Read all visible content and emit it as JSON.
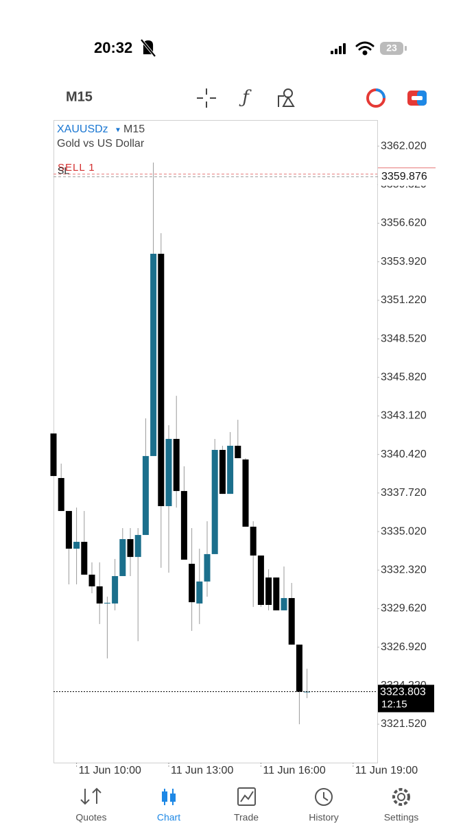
{
  "status_bar": {
    "time": "20:32",
    "battery": "23"
  },
  "toolbar": {
    "timeframe": "M15"
  },
  "chart_data": {
    "type": "candlestick",
    "symbol": "XAUUSDz",
    "timeframe": "M15",
    "description": "Gold vs US Dollar",
    "order_label": "SELL 1",
    "order_price": 3359.876,
    "sl_label": "SL",
    "sl_price": 3360.06,
    "current_price": 3323.803,
    "countdown": "12:15",
    "up_color": "#1b6f8c",
    "down_color": "#000000",
    "ylim": [
      3318.83,
      3363.85
    ],
    "yticks": [
      {
        "value": 3362.02,
        "label": "3362.020"
      },
      {
        "value": 3359.32,
        "label": "3359.320"
      },
      {
        "value": 3356.62,
        "label": "3356.620"
      },
      {
        "value": 3353.92,
        "label": "3353.920"
      },
      {
        "value": 3351.22,
        "label": "3351.220"
      },
      {
        "value": 3348.52,
        "label": "3348.520"
      },
      {
        "value": 3345.82,
        "label": "3345.820"
      },
      {
        "value": 3343.12,
        "label": "3343.120"
      },
      {
        "value": 3340.42,
        "label": "3340.420"
      },
      {
        "value": 3337.72,
        "label": "3337.720"
      },
      {
        "value": 3335.02,
        "label": "3335.020"
      },
      {
        "value": 3332.32,
        "label": "3332.320"
      },
      {
        "value": 3329.62,
        "label": "3329.620"
      },
      {
        "value": 3326.92,
        "label": "3326.920"
      },
      {
        "value": 3324.22,
        "label": "3324.220"
      },
      {
        "value": 3321.52,
        "label": "3321.520"
      }
    ],
    "categories": [
      null,
      null,
      null,
      "11 Jun 10:00",
      null,
      null,
      null,
      null,
      null,
      null,
      null,
      null,
      null,
      null,
      null,
      "11 Jun 13:00",
      null,
      null,
      null,
      null,
      null,
      null,
      null,
      null,
      null,
      null,
      null,
      "11 Jun 16:00",
      null,
      null,
      null,
      null,
      null,
      null,
      null,
      null,
      null,
      null,
      null,
      "11 Jun 19:00"
    ],
    "open": [
      3341.89,
      3338.77,
      3336.46,
      3333.82,
      3334.3,
      3332.0,
      3331.18,
      3329.98,
      3329.98,
      3331.9,
      3334.49,
      3333.24,
      3334.78,
      3340.31,
      3354.48,
      3336.8,
      3341.51,
      3337.86,
      3332.76,
      3329.98,
      3331.52,
      3333.44,
      3340.74,
      3337.66,
      3341.03,
      3340.07,
      3335.36,
      3333.34,
      3331.8,
      3331.8,
      3329.5,
      3330.36,
      3327.1,
      3323.8,
      null,
      null,
      null,
      null,
      null,
      null
    ],
    "high": [
      3341.89,
      3339.78,
      3336.46,
      3336.7,
      3336.46,
      3332.86,
      3332.86,
      3330.46,
      3333.1,
      3335.26,
      3335.26,
      3335.26,
      3342.95,
      3360.87,
      3355.92,
      3342.47,
      3344.53,
      3339.59,
      3335.26,
      3333.82,
      3335.74,
      3341.51,
      3341.03,
      3341.99,
      3342.85,
      3340.16,
      3335.74,
      3333.34,
      3332.38,
      3331.8,
      3332.57,
      3331.42,
      3327.1,
      3325.41,
      null,
      null,
      null,
      null,
      null,
      null
    ],
    "low": [
      3338.91,
      3336.46,
      3331.32,
      3331.32,
      3332.0,
      3330.7,
      3328.54,
      3326.13,
      3329.5,
      3331.9,
      3331.9,
      3327.34,
      3334.78,
      3340.31,
      3332.48,
      3332.14,
      3336.7,
      3333.05,
      3328.06,
      3328.54,
      3330.46,
      3333.44,
      3337.66,
      3337.66,
      3340.16,
      3335.36,
      3329.74,
      3329.74,
      3329.5,
      3329.5,
      3329.5,
      3327.1,
      3321.52,
      3323.35,
      null,
      null,
      null,
      null,
      null,
      null
    ],
    "close": [
      3338.91,
      3336.46,
      3333.82,
      3334.3,
      3332.0,
      3331.18,
      3329.98,
      3330.03,
      3331.9,
      3334.49,
      3333.24,
      3334.78,
      3340.31,
      3354.48,
      3336.8,
      3341.51,
      3337.86,
      3333.05,
      3330.07,
      3331.52,
      3333.44,
      3340.74,
      3337.66,
      3341.03,
      3340.16,
      3335.36,
      3333.34,
      3329.88,
      3329.88,
      3329.5,
      3330.36,
      3327.1,
      3323.8,
      3323.803,
      null,
      null,
      null,
      null,
      null,
      null
    ]
  },
  "tab_bar": {
    "tabs": [
      "Quotes",
      "Chart",
      "Trade",
      "History",
      "Settings"
    ]
  }
}
